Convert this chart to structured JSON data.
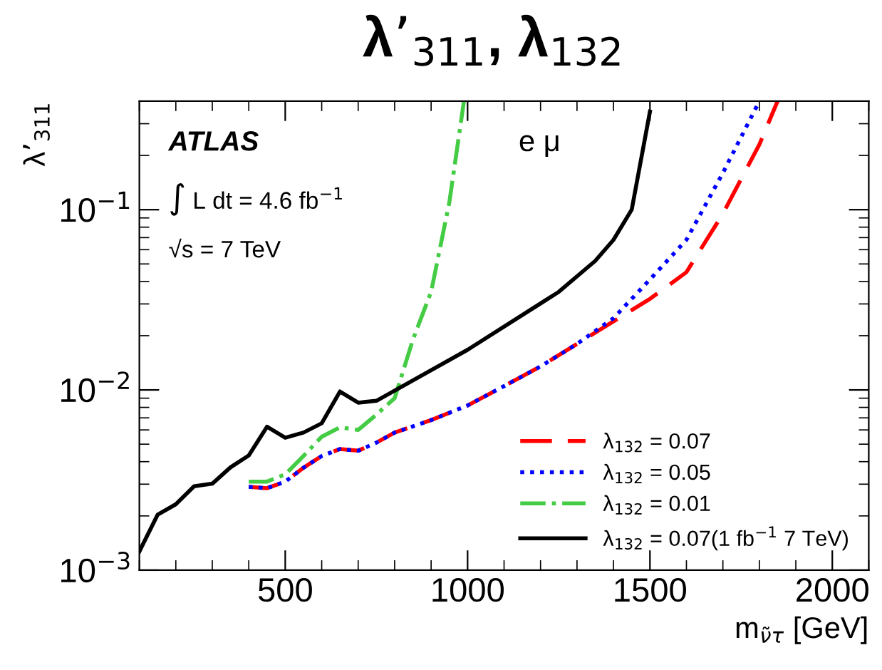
{
  "chart_data": {
    "type": "line",
    "title": "λ’$_{311}$, λ$_{132}$",
    "xlabel": "m$_{ν̃τ}$ [GeV]",
    "ylabel": "λ’$_{311}$",
    "log": "y",
    "xlim": [
      100,
      2100
    ],
    "xticks": [
      500,
      1000,
      1500,
      2000
    ],
    "ylim": [
      0.001,
      0.4
    ],
    "yticks": [
      {
        "value": 0.001,
        "label": "10$^{−3}$"
      },
      {
        "value": 0.01,
        "label": "10$^{−2}$"
      },
      {
        "value": 0.1,
        "label": "10$^{−1}$"
      }
    ],
    "grid": false,
    "legend": "bottom right",
    "annotations": [
      "ATLAS",
      "∫ L dt = 4.6 fb$^{−1}$",
      "√s = 7 TeV",
      "e μ"
    ],
    "series": [
      {
        "name": "λ$_{132}$ = 0.07",
        "color": "#ff0000",
        "line_style": "dashed",
        "x": [
          400,
          450,
          500,
          550,
          600,
          650,
          700,
          750,
          800,
          900,
          1000,
          1100,
          1200,
          1300,
          1400,
          1500,
          1600,
          1700,
          1800,
          1850
        ],
        "values": [
          0.0029,
          0.00285,
          0.0031,
          0.0037,
          0.0043,
          0.0047,
          0.0046,
          0.0051,
          0.0058,
          0.0068,
          0.0082,
          0.0105,
          0.0135,
          0.018,
          0.024,
          0.032,
          0.045,
          0.095,
          0.23,
          0.4
        ]
      },
      {
        "name": "λ$_{132}$ = 0.05",
        "color": "#0000ff",
        "line_style": "dotted",
        "x": [
          400,
          450,
          500,
          550,
          600,
          650,
          700,
          750,
          800,
          900,
          1000,
          1100,
          1200,
          1300,
          1400,
          1500,
          1600,
          1700,
          1800
        ],
        "values": [
          0.0029,
          0.00285,
          0.0031,
          0.0037,
          0.0043,
          0.0047,
          0.0046,
          0.0051,
          0.0058,
          0.0068,
          0.0082,
          0.0105,
          0.0135,
          0.018,
          0.025,
          0.041,
          0.068,
          0.16,
          0.4
        ]
      },
      {
        "name": "λ$_{132}$ = 0.01",
        "color": "#44cc44",
        "line_style": "dashdot",
        "x": [
          400,
          450,
          500,
          550,
          600,
          650,
          700,
          750,
          800,
          850,
          900,
          950,
          990
        ],
        "values": [
          0.0031,
          0.0031,
          0.0034,
          0.0043,
          0.0055,
          0.0062,
          0.006,
          0.0073,
          0.009,
          0.019,
          0.035,
          0.11,
          0.4
        ]
      },
      {
        "name": "λ$_{132}$ = 0.07(1 fb$^{−1}$ 7 TeV)",
        "color": "#000000",
        "line_style": "solid",
        "x": [
          100,
          150,
          200,
          250,
          300,
          350,
          400,
          450,
          500,
          550,
          600,
          650,
          700,
          750,
          1000,
          1250,
          1350,
          1400,
          1450,
          1500
        ],
        "values": [
          0.00127,
          0.00203,
          0.00232,
          0.00292,
          0.00302,
          0.00372,
          0.00433,
          0.00625,
          0.00543,
          0.0058,
          0.00653,
          0.0098,
          0.0085,
          0.0087,
          0.0167,
          0.035,
          0.052,
          0.068,
          0.1,
          0.35
        ]
      }
    ]
  }
}
